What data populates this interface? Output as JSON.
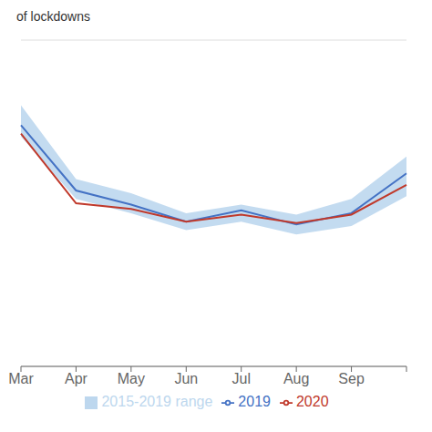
{
  "chart_data": {
    "type": "line",
    "title": "of lockdowns",
    "categories": [
      "Mar",
      "Apr",
      "May",
      "Jun",
      "Jul",
      "Aug",
      "Sep",
      null
    ],
    "series": [
      {
        "name": "2015-2019 range",
        "type": "area",
        "color": "#BDD7EE",
        "lower": [
          8.1,
          5.9,
          5.4,
          4.8,
          5.1,
          4.65,
          4.95,
          6.0
        ],
        "upper": [
          9.2,
          6.6,
          6.1,
          5.4,
          5.7,
          5.35,
          5.9,
          7.4
        ]
      },
      {
        "name": "2019",
        "type": "line",
        "color": "#4472C4",
        "values": [
          8.5,
          6.2,
          5.7,
          5.1,
          5.5,
          5.0,
          5.4,
          6.8
        ]
      },
      {
        "name": "2020",
        "type": "line",
        "color": "#C0392B",
        "values": [
          8.2,
          5.75,
          5.55,
          5.1,
          5.35,
          5.05,
          5.35,
          6.4
        ]
      }
    ],
    "ylim": [
      0.0,
      11.5
    ],
    "yticks": [
      0,
      1.9166666666666667,
      3.8333333333333335,
      5.75,
      7.666666666666667,
      9.583333333333334,
      11.5
    ],
    "grid": true,
    "tick_labels": "x",
    "legend": "bottom"
  }
}
